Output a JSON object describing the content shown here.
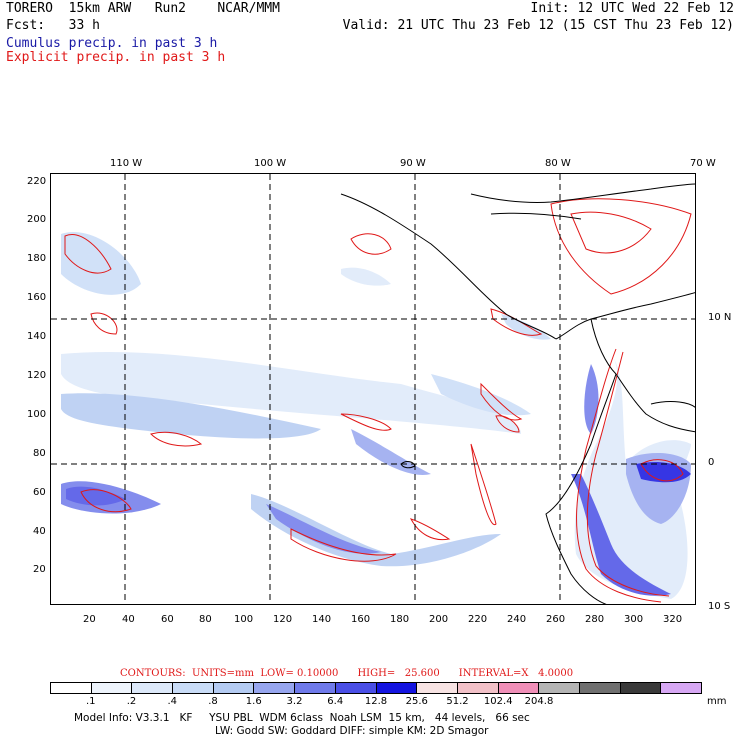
{
  "header": {
    "left_line1": "TORERO  15km ARW   Run2    NCAR/MMM",
    "right_line1": "Init: 12 UTC Wed 22 Feb 12",
    "left_line2": "Fcst:   33 h",
    "right_line2": "Valid: 21 UTC Thu 23 Feb 12 (15 CST Thu 23 Feb 12)",
    "cumulus_label": "Cumulus precip. in past 3 h",
    "explicit_label": "Explicit precip. in past 3 h"
  },
  "colors": {
    "cumulus_text": "#1a1aa6",
    "explicit_text": "#e01818",
    "contour": "#e01818",
    "coast": "#000000"
  },
  "map": {
    "top_lon_labels": [
      "110 W",
      "100 W",
      "90 W",
      "80 W",
      "70 W"
    ],
    "right_lat_labels": [
      "10 N",
      "0",
      "10 S"
    ],
    "left_y_ticks": [
      "220",
      "200",
      "180",
      "160",
      "140",
      "120",
      "100",
      "80",
      "60",
      "40",
      "20"
    ],
    "bottom_x_ticks": [
      "20",
      "40",
      "60",
      "80",
      "100",
      "120",
      "140",
      "160",
      "180",
      "200",
      "220",
      "240",
      "260",
      "280",
      "300",
      "320"
    ]
  },
  "colorbar": {
    "colors": [
      "#ffffff",
      "#eef4fc",
      "#dde9fa",
      "#c9dcf7",
      "#b4cbf2",
      "#97a6ef",
      "#6f7aea",
      "#4a4fe6",
      "#1414e0",
      "#f7e3e3",
      "#f2c1c8",
      "#f08fb8",
      "#b4b4b4",
      "#707070",
      "#3a3a3a",
      "#d7a8f4"
    ],
    "labels": [
      ".1",
      ".2",
      ".4",
      ".8",
      "1.6",
      "3.2",
      "6.4",
      "12.8",
      "25.6",
      "51.2",
      "102.4",
      "204.8"
    ],
    "unit": "mm"
  },
  "contours_line": "CONTOURS:  UNITS=mm  LOW= 0.10000      HIGH=   25.600      INTERVAL=X   4.0000",
  "model_info": {
    "line1": "Model Info: V3.3.1   KF     YSU PBL  WDM 6class  Noah LSM  15 km,   44 levels,   66 sec",
    "line2": "LW: Godd SW: Goddard DIFF: simple KM: 2D Smagor"
  }
}
